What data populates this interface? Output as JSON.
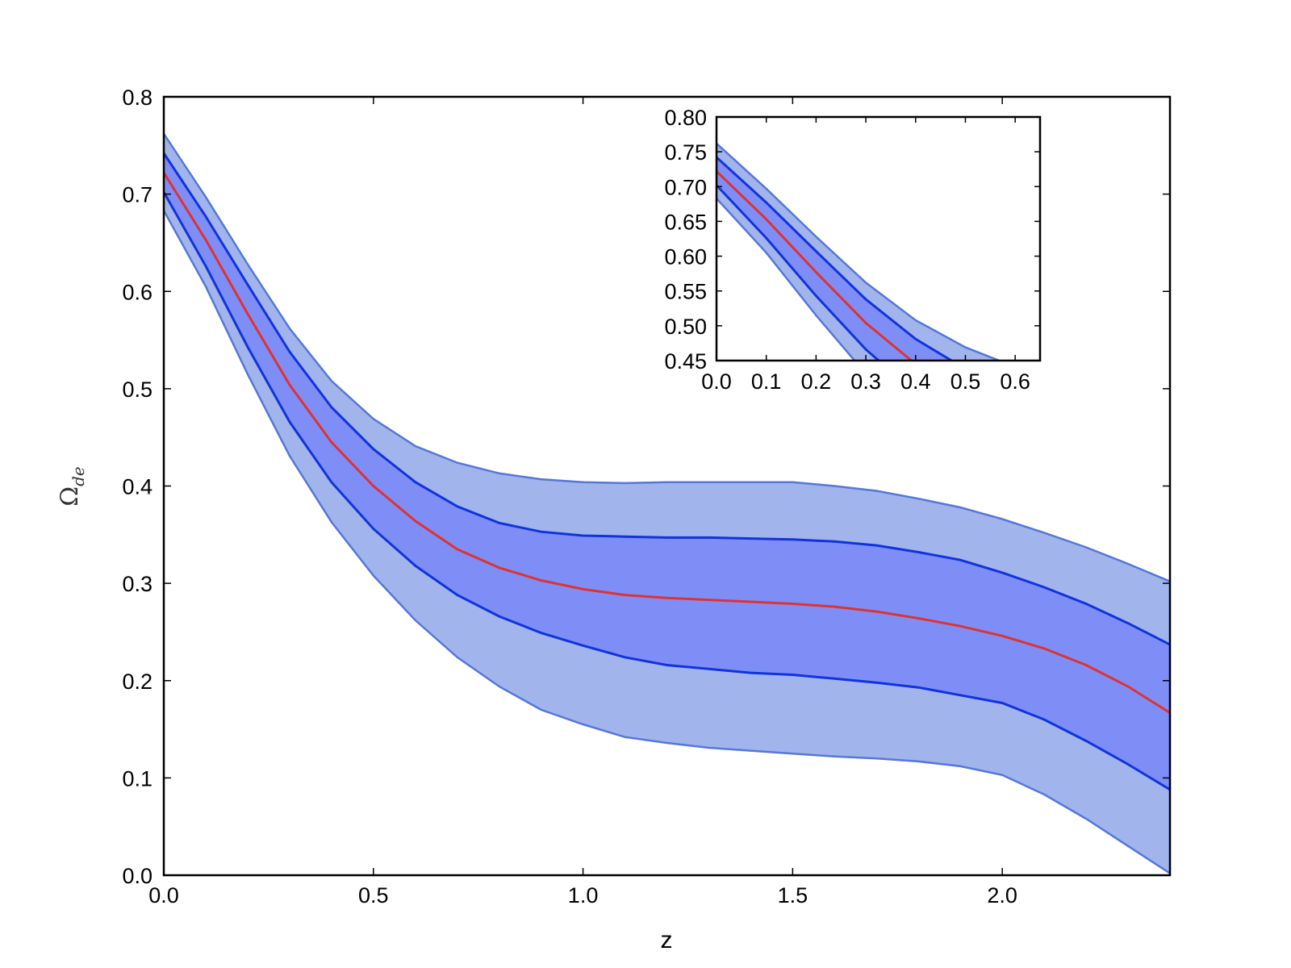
{
  "chart_data": [
    {
      "type": "area",
      "xlabel": "z",
      "ylabel": "Ω",
      "ylabel_subscript": "de",
      "xlim": [
        0.0,
        2.4
      ],
      "ylim": [
        0.0,
        0.8
      ],
      "xticks": [
        "0.0",
        "0.5",
        "1.0",
        "1.5",
        "2.0"
      ],
      "xtick_values": [
        0.0,
        0.5,
        1.0,
        1.5,
        2.0
      ],
      "yticks": [
        "0.0",
        "0.1",
        "0.2",
        "0.3",
        "0.4",
        "0.5",
        "0.6",
        "0.7",
        "0.8"
      ],
      "ytick_values": [
        0.0,
        0.1,
        0.2,
        0.3,
        0.4,
        0.5,
        0.6,
        0.7,
        0.8
      ],
      "grid": false,
      "colors": {
        "outer_band": "#a2b4ec",
        "outer_band_edge": "#5577d8",
        "inner_band": "#7f8ef6",
        "inner_band_edge": "#1133dd",
        "mean_line": "#dd3333"
      },
      "x": [
        0.0,
        0.1,
        0.2,
        0.3,
        0.4,
        0.5,
        0.6,
        0.7,
        0.8,
        0.9,
        1.0,
        1.1,
        1.2,
        1.3,
        1.4,
        1.5,
        1.6,
        1.7,
        1.8,
        1.9,
        2.0,
        2.1,
        2.2,
        2.3,
        2.4
      ],
      "series": [
        {
          "role": "mean",
          "values": [
            0.722,
            0.653,
            0.577,
            0.504,
            0.445,
            0.4,
            0.364,
            0.335,
            0.316,
            0.303,
            0.294,
            0.288,
            0.285,
            0.283,
            0.281,
            0.279,
            0.276,
            0.271,
            0.264,
            0.256,
            0.246,
            0.233,
            0.216,
            0.194,
            0.167
          ]
        },
        {
          "role": "inner_upper",
          "values": [
            0.742,
            0.677,
            0.607,
            0.538,
            0.481,
            0.438,
            0.404,
            0.379,
            0.362,
            0.353,
            0.349,
            0.348,
            0.347,
            0.347,
            0.346,
            0.345,
            0.343,
            0.339,
            0.332,
            0.324,
            0.311,
            0.296,
            0.279,
            0.259,
            0.237
          ]
        },
        {
          "role": "inner_lower",
          "values": [
            0.702,
            0.626,
            0.543,
            0.466,
            0.404,
            0.356,
            0.318,
            0.288,
            0.266,
            0.249,
            0.236,
            0.224,
            0.216,
            0.212,
            0.208,
            0.206,
            0.202,
            0.198,
            0.193,
            0.185,
            0.177,
            0.16,
            0.138,
            0.114,
            0.088
          ]
        },
        {
          "role": "outer_upper",
          "values": [
            0.762,
            0.697,
            0.628,
            0.562,
            0.508,
            0.469,
            0.441,
            0.424,
            0.413,
            0.407,
            0.404,
            0.403,
            0.404,
            0.404,
            0.404,
            0.404,
            0.4,
            0.395,
            0.387,
            0.378,
            0.366,
            0.352,
            0.337,
            0.32,
            0.302
          ]
        },
        {
          "role": "outer_lower",
          "values": [
            0.683,
            0.605,
            0.515,
            0.431,
            0.363,
            0.308,
            0.262,
            0.224,
            0.194,
            0.17,
            0.155,
            0.142,
            0.136,
            0.131,
            0.128,
            0.125,
            0.122,
            0.12,
            0.117,
            0.112,
            0.103,
            0.083,
            0.058,
            0.03,
            0.002
          ]
        }
      ]
    },
    {
      "type": "area",
      "role": "inset",
      "xlim": [
        0.0,
        0.65
      ],
      "ylim": [
        0.45,
        0.8
      ],
      "xticks": [
        "0.0",
        "0.1",
        "0.2",
        "0.3",
        "0.4",
        "0.5",
        "0.6"
      ],
      "xtick_values": [
        0.0,
        0.1,
        0.2,
        0.3,
        0.4,
        0.5,
        0.6
      ],
      "yticks": [
        "0.45",
        "0.50",
        "0.55",
        "0.60",
        "0.65",
        "0.70",
        "0.75",
        "0.80"
      ],
      "ytick_values": [
        0.45,
        0.5,
        0.55,
        0.6,
        0.65,
        0.7,
        0.75,
        0.8
      ],
      "grid": false
    }
  ]
}
